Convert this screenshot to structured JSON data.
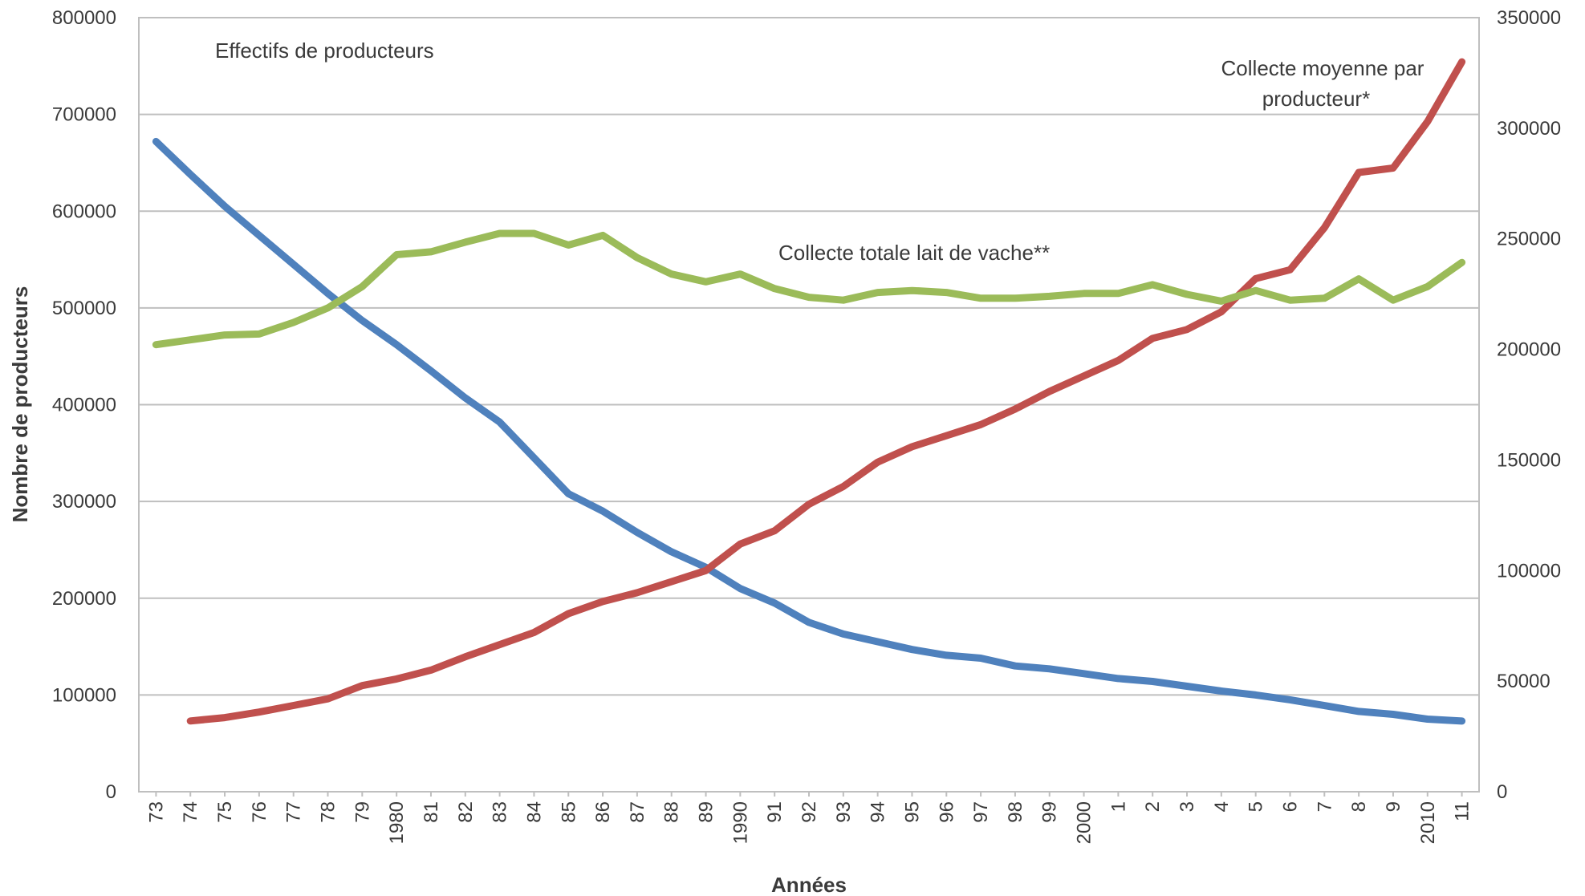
{
  "chart_data": {
    "type": "line",
    "title": "",
    "xlabel": "Années",
    "ylabel_left": "Nombre de producteurs",
    "ylabel_right": "",
    "ylim_left": [
      0,
      800000
    ],
    "ylim_right": [
      0,
      350000
    ],
    "yticks_left": [
      "0",
      "100000",
      "200000",
      "300000",
      "400000",
      "500000",
      "600000",
      "700000",
      "800000"
    ],
    "yticks_right": [
      "0",
      "50000",
      "100000",
      "150000",
      "200000",
      "250000",
      "300000",
      "350000"
    ],
    "grid": true,
    "legend": "none",
    "categories": [
      "73",
      "74",
      "75",
      "76",
      "77",
      "78",
      "79",
      "1980",
      "81",
      "82",
      "83",
      "84",
      "85",
      "86",
      "87",
      "88",
      "89",
      "1990",
      "91",
      "92",
      "93",
      "94",
      "95",
      "96",
      "97",
      "98",
      "99",
      "2000",
      "1",
      "2",
      "3",
      "4",
      "5",
      "6",
      "7",
      "8",
      "9",
      "2010",
      "11"
    ],
    "series": [
      {
        "name": "Effectifs de producteurs",
        "axis": "left",
        "color": "#4f81bd",
        "values": [
          672000,
          638000,
          605000,
          575000,
          545000,
          515000,
          487000,
          462000,
          435000,
          407000,
          382000,
          345000,
          308000,
          290000,
          268000,
          248000,
          232000,
          210000,
          195000,
          175000,
          163000,
          155000,
          147000,
          141000,
          138000,
          130000,
          127000,
          122000,
          117000,
          114000,
          109000,
          104000,
          100000,
          95000,
          89000,
          83000,
          80000,
          75000,
          73000
        ]
      },
      {
        "name": "Collecte moyenne par producteur*",
        "axis": "right",
        "color": "#c0504d",
        "values": [
          null,
          32000,
          33500,
          36000,
          39000,
          42000,
          48000,
          51000,
          55000,
          61000,
          66500,
          72000,
          80500,
          86000,
          90000,
          95000,
          100000,
          112000,
          118000,
          130000,
          138000,
          149000,
          156000,
          161000,
          166000,
          173000,
          181000,
          188000,
          195000,
          205000,
          209000,
          217000,
          232000,
          236000,
          255000,
          280000,
          282000,
          303000,
          330000
        ]
      },
      {
        "name": "Collecte totale lait de vache**",
        "axis": "left",
        "color": "#9bbb59",
        "values": [
          462000,
          467000,
          472000,
          473000,
          485000,
          500000,
          522000,
          555000,
          558000,
          568000,
          577000,
          577000,
          565000,
          575000,
          552000,
          535000,
          527000,
          535000,
          520000,
          511000,
          508000,
          516000,
          518000,
          516000,
          510000,
          510000,
          512000,
          515000,
          515000,
          524000,
          514000,
          507000,
          518000,
          508000,
          510000,
          530000,
          508000,
          522000,
          547000
        ]
      }
    ],
    "annotations": {
      "effectifs": "Effectifs de producteurs",
      "collecte_moyenne_line1": "Collecte moyenne par",
      "collecte_moyenne_line2": "producteur*",
      "collecte_totale": "Collecte totale lait de vache**"
    }
  }
}
